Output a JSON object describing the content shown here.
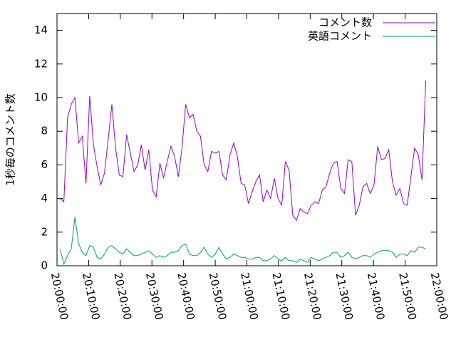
{
  "chart_data": {
    "type": "line",
    "ylabel": "1秒毎のコメント数",
    "xlim": [
      "20:00:00",
      "22:00:00"
    ],
    "xticks": [
      "20:00:00",
      "20:10:00",
      "20:20:00",
      "20:30:00",
      "20:40:00",
      "20:50:00",
      "21:00:00",
      "21:10:00",
      "21:20:00",
      "21:30:00",
      "21:40:00",
      "21:50:00",
      "22:00:00"
    ],
    "ylim": [
      0,
      15
    ],
    "yticks": [
      0,
      2,
      4,
      6,
      8,
      10,
      12,
      14
    ],
    "legend": "top-right",
    "x": [
      "20:01:00",
      "20:02:10",
      "20:03:20",
      "20:04:30",
      "20:05:40",
      "20:06:50",
      "20:08:00",
      "20:09:10",
      "20:10:20",
      "20:11:30",
      "20:12:40",
      "20:13:50",
      "20:15:00",
      "20:16:10",
      "20:17:20",
      "20:18:30",
      "20:19:40",
      "20:20:50",
      "20:22:00",
      "20:23:10",
      "20:24:20",
      "20:25:30",
      "20:26:40",
      "20:27:50",
      "20:29:00",
      "20:30:10",
      "20:31:20",
      "20:32:30",
      "20:33:40",
      "20:34:50",
      "20:36:00",
      "20:37:10",
      "20:38:20",
      "20:39:30",
      "20:40:40",
      "20:41:50",
      "20:43:00",
      "20:44:10",
      "20:45:20",
      "20:46:30",
      "20:47:40",
      "20:48:50",
      "20:50:00",
      "20:51:10",
      "20:52:20",
      "20:53:30",
      "20:54:40",
      "20:55:50",
      "20:57:00",
      "20:58:10",
      "20:59:20",
      "21:00:30",
      "21:01:40",
      "21:02:50",
      "21:04:00",
      "21:05:10",
      "21:06:20",
      "21:07:30",
      "21:08:40",
      "21:09:50",
      "21:11:00",
      "21:12:10",
      "21:13:20",
      "21:14:30",
      "21:15:40",
      "21:16:50",
      "21:18:00",
      "21:19:10",
      "21:20:20",
      "21:21:30",
      "21:22:40",
      "21:23:50",
      "21:25:00",
      "21:26:10",
      "21:27:20",
      "21:28:30",
      "21:29:40",
      "21:30:50",
      "21:32:00",
      "21:33:10",
      "21:34:20",
      "21:35:30",
      "21:36:40",
      "21:37:50",
      "21:39:00",
      "21:40:10",
      "21:41:20",
      "21:42:30",
      "21:43:40",
      "21:44:50",
      "21:46:00",
      "21:47:10",
      "21:48:20",
      "21:49:30",
      "21:50:40",
      "21:51:50",
      "21:53:00",
      "21:54:10",
      "21:55:20",
      "21:56:30"
    ],
    "series": [
      {
        "name": "コメント数",
        "color": "#9400d3",
        "values": [
          4.0,
          3.8,
          8.8,
          9.6,
          10.0,
          7.3,
          7.7,
          4.9,
          10.1,
          7.2,
          5.9,
          4.8,
          5.5,
          7.5,
          9.6,
          7.0,
          5.4,
          5.3,
          7.8,
          6.7,
          5.6,
          6.0,
          7.2,
          5.7,
          6.9,
          4.5,
          4.1,
          6.1,
          5.2,
          6.2,
          7.1,
          6.5,
          5.3,
          7.0,
          9.6,
          8.8,
          9.0,
          8.0,
          7.7,
          6.0,
          5.6,
          6.8,
          6.7,
          6.8,
          5.4,
          5.1,
          6.6,
          7.3,
          6.5,
          4.9,
          4.8,
          3.7,
          4.4,
          5.0,
          5.4,
          3.8,
          4.5,
          4.0,
          5.2,
          4.0,
          3.6,
          6.2,
          5.7,
          3.0,
          2.7,
          3.4,
          3.2,
          3.1,
          3.6,
          3.8,
          3.7,
          4.5,
          4.7,
          5.5,
          6.1,
          6.2,
          4.6,
          4.3,
          6.3,
          6.2,
          3.0,
          3.6,
          4.7,
          4.9,
          4.3,
          4.8,
          7.1,
          6.3,
          6.4,
          6.9,
          5.0,
          4.2,
          4.6,
          3.7,
          3.6,
          5.3,
          7.0,
          6.6,
          5.1,
          11.0
        ]
      },
      {
        "name": "英語コメント",
        "color": "#009e73",
        "values": [
          1.0,
          0.1,
          0.6,
          1.0,
          2.9,
          1.3,
          0.8,
          0.6,
          1.2,
          1.1,
          0.5,
          0.4,
          0.7,
          1.1,
          1.2,
          1.0,
          0.8,
          0.7,
          1.0,
          0.8,
          0.6,
          0.6,
          0.7,
          0.8,
          0.9,
          0.7,
          0.5,
          0.6,
          0.5,
          0.6,
          0.8,
          0.8,
          0.9,
          1.2,
          1.3,
          0.7,
          0.6,
          0.6,
          0.8,
          1.1,
          0.7,
          0.5,
          0.7,
          1.1,
          0.7,
          0.4,
          0.5,
          0.7,
          0.6,
          0.5,
          0.5,
          0.4,
          0.4,
          0.5,
          0.5,
          0.3,
          0.3,
          0.4,
          0.6,
          0.4,
          0.3,
          0.5,
          0.3,
          0.3,
          0.2,
          0.4,
          0.3,
          0.2,
          0.5,
          0.4,
          0.3,
          0.4,
          0.5,
          0.6,
          0.8,
          0.8,
          0.5,
          0.6,
          0.8,
          0.5,
          0.4,
          0.5,
          0.6,
          0.6,
          0.5,
          0.7,
          0.8,
          0.9,
          0.9,
          0.9,
          0.8,
          0.5,
          0.7,
          0.7,
          0.6,
          0.9,
          0.8,
          1.1,
          1.1,
          1.0
        ]
      }
    ]
  }
}
